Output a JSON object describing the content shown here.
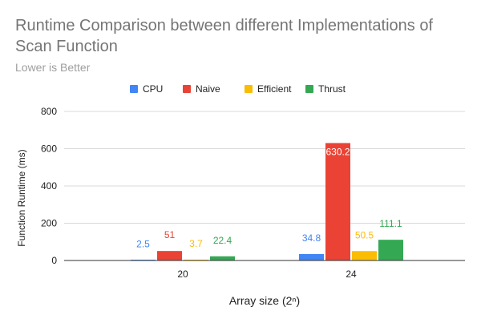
{
  "chart_data": {
    "type": "bar",
    "title_line1": "Runtime Comparison between different Implementations of",
    "title_line2": "Scan Function",
    "subtitle": "Lower is Better",
    "xlabel": "Array size (2ⁿ)",
    "ylabel": "Function Runtime (ms)",
    "categories": [
      "20",
      "24"
    ],
    "ylim": [
      0,
      800
    ],
    "yticks": [
      0,
      200,
      400,
      600,
      800
    ],
    "grid": true,
    "legend_position": "top",
    "series": [
      {
        "name": "CPU",
        "color": "#4285f4",
        "values": [
          2.5,
          34.8
        ],
        "labels": [
          "2.5",
          "34.8"
        ]
      },
      {
        "name": "Naive",
        "color": "#ea4335",
        "values": [
          51,
          630.2
        ],
        "labels": [
          "51",
          "630.2"
        ]
      },
      {
        "name": "Efficient",
        "color": "#fbbc04",
        "values": [
          3.7,
          50.5
        ],
        "labels": [
          "3.7",
          "50.5"
        ]
      },
      {
        "name": "Thrust",
        "color": "#34a853",
        "values": [
          22.4,
          111.1
        ],
        "labels": [
          "22.4",
          "111.1"
        ]
      }
    ]
  }
}
